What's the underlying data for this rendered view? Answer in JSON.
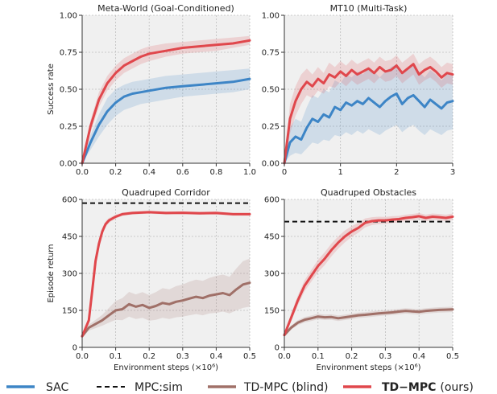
{
  "colors": {
    "sac": "#3d85c6",
    "mpcsim": "#111111",
    "blind": "#a07068",
    "tdmpc": "#e0474c",
    "panel_bg": "#f0f0f0",
    "grid": "#bdbdbd"
  },
  "legend": {
    "sac": "SAC",
    "mpcsim": "MPC:sim",
    "blind": "TD-MPC (blind)",
    "tdmpc_bold": "TD−MPC",
    "tdmpc_suffix": "(ours)"
  },
  "chart_data": [
    {
      "type": "line",
      "title": "Meta-World (Goal-Conditioned)",
      "ylabel": "Success rate",
      "xlabel": "",
      "xlim": [
        0,
        1
      ],
      "ylim": [
        0,
        1
      ],
      "xticks": [
        0.0,
        0.2,
        0.4,
        0.6,
        0.8,
        1.0
      ],
      "xtick_labels": [
        "0.0",
        "0.2",
        "0.4",
        "0.6",
        "0.8",
        "1.0"
      ],
      "yticks": [
        0,
        0.25,
        0.5,
        0.75,
        1.0
      ],
      "ytick_labels": [
        "0.00",
        "0.25",
        "0.50",
        "0.75",
        "1.00"
      ],
      "series": [
        {
          "key": "sac",
          "x": [
            0,
            0.05,
            0.1,
            0.15,
            0.2,
            0.25,
            0.3,
            0.35,
            0.4,
            0.5,
            0.6,
            0.7,
            0.8,
            0.9,
            1.0
          ],
          "y": [
            0,
            0.14,
            0.26,
            0.35,
            0.41,
            0.45,
            0.47,
            0.48,
            0.49,
            0.51,
            0.52,
            0.53,
            0.54,
            0.55,
            0.57
          ],
          "lower": [
            0,
            0.09,
            0.18,
            0.26,
            0.32,
            0.36,
            0.38,
            0.4,
            0.41,
            0.43,
            0.45,
            0.46,
            0.47,
            0.48,
            0.5
          ],
          "upper": [
            0,
            0.19,
            0.33,
            0.44,
            0.5,
            0.53,
            0.55,
            0.56,
            0.57,
            0.59,
            0.6,
            0.61,
            0.62,
            0.63,
            0.64
          ]
        },
        {
          "key": "tdmpc",
          "x": [
            0,
            0.05,
            0.1,
            0.15,
            0.2,
            0.25,
            0.3,
            0.35,
            0.4,
            0.5,
            0.6,
            0.7,
            0.8,
            0.9,
            1.0
          ],
          "y": [
            0,
            0.25,
            0.43,
            0.54,
            0.61,
            0.66,
            0.69,
            0.72,
            0.74,
            0.76,
            0.78,
            0.79,
            0.8,
            0.81,
            0.83
          ],
          "lower": [
            0,
            0.21,
            0.38,
            0.49,
            0.56,
            0.61,
            0.64,
            0.67,
            0.69,
            0.72,
            0.74,
            0.75,
            0.76,
            0.78,
            0.8
          ],
          "upper": [
            0,
            0.29,
            0.48,
            0.59,
            0.66,
            0.71,
            0.74,
            0.77,
            0.79,
            0.81,
            0.82,
            0.83,
            0.84,
            0.85,
            0.86
          ]
        }
      ]
    },
    {
      "type": "line",
      "title": "MT10 (Multi-Task)",
      "ylabel": "",
      "xlabel": "",
      "xlim": [
        0,
        3
      ],
      "ylim": [
        0,
        1
      ],
      "xticks": [
        0,
        1,
        2,
        3
      ],
      "xtick_labels": [
        "0",
        "1",
        "2",
        "3"
      ],
      "yticks": [
        0,
        0.25,
        0.5,
        0.75,
        1.0
      ],
      "ytick_labels": [
        "0.00",
        "0.25",
        "0.50",
        "0.75",
        "1.00"
      ],
      "series": [
        {
          "key": "sac",
          "x": [
            0,
            0.1,
            0.2,
            0.3,
            0.4,
            0.5,
            0.6,
            0.7,
            0.8,
            0.9,
            1.0,
            1.1,
            1.2,
            1.3,
            1.4,
            1.5,
            1.6,
            1.7,
            1.8,
            1.9,
            2.0,
            2.1,
            2.2,
            2.3,
            2.4,
            2.5,
            2.6,
            2.7,
            2.8,
            2.9,
            3.0
          ],
          "y": [
            0,
            0.14,
            0.18,
            0.16,
            0.24,
            0.3,
            0.28,
            0.33,
            0.31,
            0.38,
            0.36,
            0.41,
            0.39,
            0.42,
            0.4,
            0.44,
            0.41,
            0.38,
            0.42,
            0.45,
            0.47,
            0.4,
            0.44,
            0.46,
            0.42,
            0.38,
            0.43,
            0.4,
            0.37,
            0.41,
            0.42
          ],
          "lower": [
            0,
            0.05,
            0.07,
            0.06,
            0.1,
            0.14,
            0.13,
            0.16,
            0.15,
            0.19,
            0.18,
            0.21,
            0.19,
            0.22,
            0.2,
            0.23,
            0.21,
            0.19,
            0.22,
            0.24,
            0.26,
            0.21,
            0.24,
            0.26,
            0.22,
            0.19,
            0.23,
            0.21,
            0.19,
            0.22,
            0.23
          ],
          "upper": [
            0,
            0.24,
            0.3,
            0.28,
            0.38,
            0.46,
            0.44,
            0.5,
            0.48,
            0.56,
            0.54,
            0.6,
            0.58,
            0.62,
            0.6,
            0.64,
            0.62,
            0.58,
            0.62,
            0.65,
            0.67,
            0.6,
            0.64,
            0.66,
            0.62,
            0.58,
            0.63,
            0.6,
            0.56,
            0.6,
            0.61
          ]
        },
        {
          "key": "tdmpc",
          "x": [
            0,
            0.1,
            0.2,
            0.3,
            0.4,
            0.5,
            0.6,
            0.7,
            0.8,
            0.9,
            1.0,
            1.1,
            1.2,
            1.3,
            1.4,
            1.5,
            1.6,
            1.7,
            1.8,
            1.9,
            2.0,
            2.1,
            2.2,
            2.3,
            2.4,
            2.5,
            2.6,
            2.7,
            2.8,
            2.9,
            3.0
          ],
          "y": [
            0,
            0.3,
            0.42,
            0.5,
            0.55,
            0.52,
            0.57,
            0.54,
            0.6,
            0.58,
            0.62,
            0.59,
            0.63,
            0.6,
            0.62,
            0.64,
            0.61,
            0.65,
            0.62,
            0.63,
            0.66,
            0.61,
            0.64,
            0.67,
            0.6,
            0.63,
            0.65,
            0.62,
            0.58,
            0.61,
            0.6
          ],
          "lower": [
            0,
            0.2,
            0.32,
            0.4,
            0.46,
            0.44,
            0.49,
            0.47,
            0.52,
            0.51,
            0.55,
            0.52,
            0.56,
            0.53,
            0.55,
            0.57,
            0.54,
            0.58,
            0.55,
            0.56,
            0.59,
            0.54,
            0.57,
            0.6,
            0.53,
            0.56,
            0.58,
            0.55,
            0.51,
            0.54,
            0.53
          ],
          "upper": [
            0,
            0.4,
            0.52,
            0.6,
            0.64,
            0.6,
            0.65,
            0.61,
            0.68,
            0.65,
            0.69,
            0.66,
            0.7,
            0.67,
            0.69,
            0.71,
            0.68,
            0.72,
            0.69,
            0.7,
            0.73,
            0.68,
            0.71,
            0.74,
            0.67,
            0.7,
            0.72,
            0.69,
            0.65,
            0.68,
            0.67
          ]
        }
      ]
    },
    {
      "type": "line",
      "title": "Quadruped Corridor",
      "ylabel": "Episode return",
      "xlabel": "Environment steps (×10⁶)",
      "xlim": [
        0,
        0.5
      ],
      "ylim": [
        0,
        600
      ],
      "xticks": [
        0.0,
        0.1,
        0.2,
        0.3,
        0.4,
        0.5
      ],
      "xtick_labels": [
        "0.0",
        "0.1",
        "0.2",
        "0.3",
        "0.4",
        "0.5"
      ],
      "yticks": [
        0,
        150,
        300,
        450,
        600
      ],
      "ytick_labels": [
        "0",
        "150",
        "300",
        "450",
        "600"
      ],
      "hline": {
        "key": "mpcsim",
        "y": 585
      },
      "series": [
        {
          "key": "blind",
          "x": [
            0,
            0.02,
            0.04,
            0.06,
            0.08,
            0.1,
            0.12,
            0.14,
            0.16,
            0.18,
            0.2,
            0.22,
            0.24,
            0.26,
            0.28,
            0.3,
            0.32,
            0.34,
            0.36,
            0.38,
            0.4,
            0.42,
            0.44,
            0.46,
            0.48,
            0.5
          ],
          "y": [
            45,
            80,
            95,
            110,
            130,
            150,
            155,
            175,
            165,
            172,
            160,
            168,
            180,
            175,
            185,
            190,
            198,
            205,
            200,
            210,
            215,
            220,
            212,
            235,
            255,
            262
          ],
          "lower": [
            40,
            68,
            78,
            88,
            100,
            112,
            110,
            125,
            115,
            120,
            108,
            112,
            120,
            115,
            122,
            125,
            130,
            135,
            130,
            138,
            140,
            145,
            138,
            150,
            160,
            165
          ],
          "upper": [
            50,
            92,
            112,
            132,
            160,
            188,
            200,
            225,
            215,
            224,
            212,
            224,
            240,
            235,
            248,
            255,
            266,
            275,
            270,
            282,
            290,
            295,
            286,
            320,
            350,
            360
          ]
        },
        {
          "key": "tdmpc",
          "x": [
            0,
            0.02,
            0.03,
            0.04,
            0.05,
            0.06,
            0.07,
            0.08,
            0.1,
            0.12,
            0.15,
            0.2,
            0.25,
            0.3,
            0.35,
            0.4,
            0.45,
            0.5
          ],
          "y": [
            45,
            110,
            230,
            350,
            420,
            470,
            500,
            515,
            530,
            540,
            545,
            548,
            545,
            546,
            544,
            545,
            540,
            540
          ],
          "lower": [
            40,
            95,
            205,
            325,
            400,
            455,
            488,
            505,
            522,
            533,
            539,
            542,
            539,
            540,
            538,
            539,
            534,
            534
          ],
          "upper": [
            50,
            125,
            255,
            375,
            440,
            485,
            512,
            525,
            538,
            547,
            551,
            554,
            551,
            552,
            550,
            551,
            546,
            546
          ]
        }
      ]
    },
    {
      "type": "line",
      "title": "Quadruped Obstacles",
      "ylabel": "",
      "xlabel": "Environment steps (×10⁶)",
      "xlim": [
        0,
        0.5
      ],
      "ylim": [
        0,
        600
      ],
      "xticks": [
        0.0,
        0.1,
        0.2,
        0.3,
        0.4,
        0.5
      ],
      "xtick_labels": [
        "0.0",
        "0.1",
        "0.2",
        "0.3",
        "0.4",
        "0.5"
      ],
      "yticks": [
        0,
        150,
        300,
        450,
        600
      ],
      "ytick_labels": [
        "0",
        "150",
        "300",
        "450",
        "600"
      ],
      "hline": {
        "key": "mpcsim",
        "y": 510
      },
      "series": [
        {
          "key": "blind",
          "x": [
            0,
            0.02,
            0.04,
            0.06,
            0.08,
            0.1,
            0.12,
            0.14,
            0.16,
            0.18,
            0.2,
            0.22,
            0.24,
            0.26,
            0.28,
            0.3,
            0.32,
            0.34,
            0.36,
            0.38,
            0.4,
            0.42,
            0.44,
            0.46,
            0.48,
            0.5
          ],
          "y": [
            50,
            80,
            100,
            112,
            118,
            125,
            122,
            123,
            118,
            122,
            126,
            130,
            132,
            135,
            138,
            140,
            142,
            145,
            148,
            146,
            144,
            148,
            150,
            152,
            153,
            154
          ],
          "lower": [
            45,
            72,
            90,
            101,
            107,
            114,
            111,
            112,
            107,
            111,
            115,
            119,
            121,
            124,
            127,
            129,
            131,
            134,
            137,
            135,
            133,
            137,
            139,
            141,
            142,
            143
          ],
          "upper": [
            55,
            88,
            110,
            123,
            129,
            136,
            133,
            134,
            129,
            133,
            137,
            141,
            143,
            146,
            149,
            151,
            153,
            156,
            159,
            157,
            155,
            159,
            161,
            163,
            164,
            165
          ]
        },
        {
          "key": "tdmpc",
          "x": [
            0,
            0.02,
            0.04,
            0.06,
            0.08,
            0.1,
            0.12,
            0.14,
            0.16,
            0.18,
            0.2,
            0.22,
            0.24,
            0.26,
            0.28,
            0.3,
            0.32,
            0.34,
            0.36,
            0.38,
            0.4,
            0.42,
            0.44,
            0.46,
            0.48,
            0.5
          ],
          "y": [
            50,
            120,
            190,
            250,
            290,
            330,
            360,
            395,
            425,
            450,
            470,
            485,
            505,
            512,
            515,
            515,
            518,
            520,
            525,
            528,
            532,
            525,
            530,
            528,
            525,
            530
          ],
          "lower": [
            45,
            105,
            170,
            228,
            266,
            305,
            334,
            369,
            400,
            426,
            448,
            465,
            487,
            496,
            500,
            501,
            504,
            507,
            512,
            515,
            519,
            512,
            517,
            515,
            512,
            517
          ],
          "upper": [
            55,
            135,
            210,
            272,
            314,
            355,
            386,
            421,
            450,
            474,
            492,
            505,
            523,
            528,
            530,
            529,
            532,
            533,
            538,
            541,
            545,
            538,
            543,
            541,
            538,
            543
          ]
        }
      ]
    }
  ]
}
